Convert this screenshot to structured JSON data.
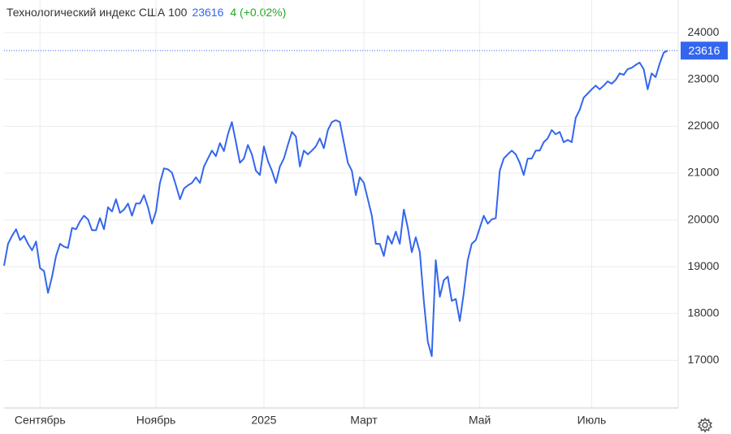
{
  "chart_data": {
    "type": "line",
    "title": "Технологический индекс США 100",
    "change": "4 (+0.02%)",
    "color": "#3366ee",
    "grid": true,
    "xlim": [
      0,
      166
    ],
    "xticks": [
      {
        "value": 9,
        "label": "Сентябрь"
      },
      {
        "value": 38,
        "label": "Ноябрь"
      },
      {
        "value": 65,
        "label": "2025"
      },
      {
        "value": 90,
        "label": "Март"
      },
      {
        "value": 119,
        "label": "Май"
      },
      {
        "value": 147,
        "label": "Июль"
      }
    ],
    "ylim": [
      16000,
      24600
    ],
    "yticks": [
      17000,
      18000,
      19000,
      20000,
      21000,
      22000,
      23000,
      24000
    ],
    "values": [
      19020,
      19490,
      19660,
      19800,
      19570,
      19660,
      19490,
      19350,
      19540,
      18970,
      18910,
      18440,
      18790,
      19230,
      19490,
      19430,
      19400,
      19830,
      19800,
      19970,
      20090,
      20010,
      19780,
      19780,
      20040,
      19800,
      20270,
      20180,
      20440,
      20150,
      20220,
      20350,
      20090,
      20350,
      20350,
      20530,
      20270,
      19920,
      20180,
      20790,
      21100,
      21080,
      21010,
      20740,
      20440,
      20670,
      20740,
      20790,
      20910,
      20790,
      21140,
      21310,
      21480,
      21360,
      21640,
      21470,
      21830,
      22090,
      21660,
      21220,
      21310,
      21600,
      21400,
      21050,
      20960,
      21570,
      21260,
      21050,
      20790,
      21140,
      21310,
      21600,
      21880,
      21780,
      21140,
      21480,
      21400,
      21480,
      21570,
      21740,
      21530,
      21920,
      22090,
      22130,
      22090,
      21660,
      21220,
      21050,
      20530,
      20910,
      20790,
      20440,
      20090,
      19490,
      19490,
      19230,
      19660,
      19490,
      19750,
      19490,
      20220,
      19830,
      19310,
      19630,
      19310,
      18270,
      17400,
      17090,
      19140,
      18360,
      18710,
      18790,
      18270,
      18310,
      17840,
      18440,
      19140,
      19490,
      19570,
      19830,
      20090,
      19920,
      20010,
      20040,
      21050,
      21310,
      21400,
      21480,
      21400,
      21220,
      20960,
      21310,
      21310,
      21480,
      21480,
      21660,
      21740,
      21920,
      21830,
      21880,
      21660,
      21710,
      21660,
      22180,
      22350,
      22610,
      22700,
      22790,
      22870,
      22790,
      22870,
      22960,
      22910,
      22990,
      23130,
      23100,
      23220,
      23250,
      23310,
      23360,
      23220,
      22790,
      23130,
      23050,
      23340,
      23570,
      23616
    ]
  }
}
